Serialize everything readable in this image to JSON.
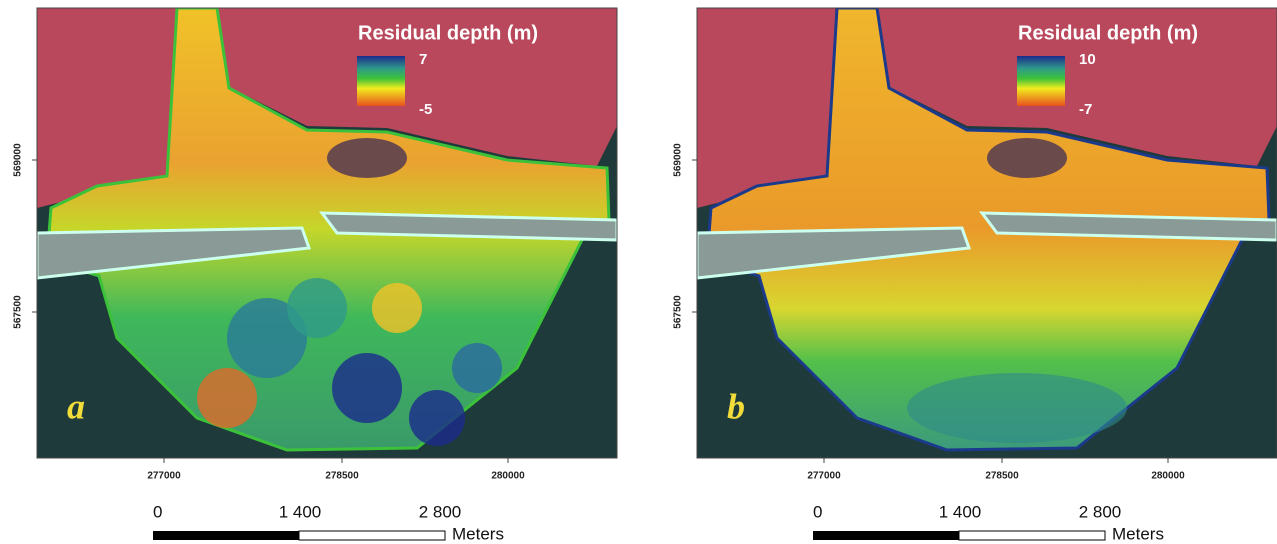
{
  "panels": [
    {
      "label": "a",
      "legend": {
        "title": "Residual depth (m)",
        "max": 7,
        "min": -5
      },
      "x_ticks": [
        277000,
        278500,
        280000
      ],
      "y_ticks": [
        569000,
        567500
      ],
      "scale_bar": {
        "ticks": [
          0,
          "1 400",
          "2 800"
        ],
        "unit": "Meters"
      }
    },
    {
      "label": "b",
      "legend": {
        "title": "Residual depth (m)",
        "max": 10,
        "min": -7
      },
      "x_ticks": [
        277000,
        278500,
        280000
      ],
      "y_ticks": [
        569000,
        567500
      ],
      "scale_bar": {
        "ticks": [
          0,
          "1 400",
          "2 800"
        ],
        "unit": "Meters"
      }
    }
  ]
}
